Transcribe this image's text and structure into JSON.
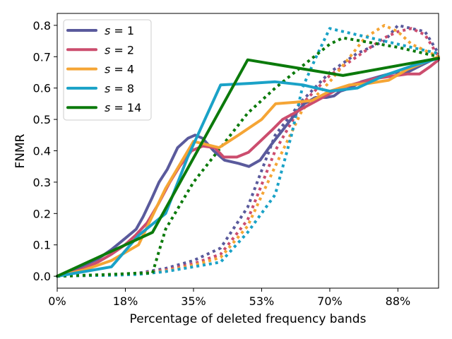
{
  "chart_data": {
    "type": "line",
    "title": "",
    "xlabel": "Percentage of deleted frequency bands",
    "ylabel": "FNMR",
    "xlim": [
      0,
      98.5
    ],
    "ylim": [
      -0.038,
      0.838
    ],
    "xticks": [
      0,
      17.6,
      35.2,
      52.8,
      70.4,
      88.0
    ],
    "xtick_labels": [
      "0%",
      "18%",
      "35%",
      "53%",
      "70%",
      "88%"
    ],
    "yticks": [
      0.0,
      0.1,
      0.2,
      0.3,
      0.4,
      0.5,
      0.6,
      0.7,
      0.8
    ],
    "ytick_labels": [
      "0.0",
      "0.1",
      "0.2",
      "0.3",
      "0.4",
      "0.5",
      "0.6",
      "0.7",
      "0.8"
    ],
    "grid": false,
    "legend_position": "top-left",
    "legend_prefix": "s",
    "legend_equals": "=",
    "note": "solid lines and dotted lines per setting; legend shows solid style",
    "series": [
      {
        "name": "1",
        "label": "s = 1",
        "color": "#5a5a9c",
        "style": "solid",
        "x": [
          0,
          3.5,
          7,
          10.5,
          14,
          17.5,
          20.4,
          22.2,
          24.5,
          26.3,
          28.4,
          31.1,
          33.8,
          35.6,
          37.5,
          40.4,
          43.2,
          46.8,
          49.5,
          52.4,
          55.3,
          58.5,
          61,
          63.8,
          66.7,
          69.5,
          71.5,
          73.1,
          75.7,
          78.5,
          81.3,
          84.2,
          87.2,
          89.6,
          92,
          95.2,
          98.5
        ],
        "y": [
          0,
          0.015,
          0.035,
          0.055,
          0.085,
          0.12,
          0.15,
          0.19,
          0.25,
          0.3,
          0.34,
          0.41,
          0.44,
          0.45,
          0.44,
          0.4,
          0.37,
          0.36,
          0.35,
          0.37,
          0.42,
          0.47,
          0.51,
          0.55,
          0.57,
          0.57,
          0.575,
          0.59,
          0.6,
          0.62,
          0.63,
          0.64,
          0.65,
          0.645,
          0.66,
          0.68,
          0.7
        ]
      },
      {
        "name": "2",
        "label": "s = 2",
        "color": "#cc4d6e",
        "style": "solid",
        "x": [
          0,
          3.5,
          7,
          10.5,
          14,
          17.5,
          20.2,
          23.2,
          26.1,
          29.1,
          31.6,
          34.7,
          37.6,
          40.7,
          43,
          46.4,
          49.4,
          52.4,
          55.4,
          58.2,
          61.2,
          64.1,
          67.1,
          70,
          73,
          75.9,
          78.9,
          81.8,
          84.8,
          87.7,
          90.6,
          93.6,
          96.5,
          98.5
        ],
        "y": [
          0,
          0.01,
          0.025,
          0.045,
          0.07,
          0.1,
          0.13,
          0.17,
          0.23,
          0.3,
          0.35,
          0.4,
          0.415,
          0.41,
          0.38,
          0.38,
          0.395,
          0.43,
          0.465,
          0.5,
          0.52,
          0.54,
          0.56,
          0.58,
          0.6,
          0.61,
          0.62,
          0.63,
          0.635,
          0.64,
          0.645,
          0.645,
          0.67,
          0.69
        ]
      },
      {
        "name": "4",
        "label": "s = 4",
        "color": "#f5a535",
        "style": "solid",
        "x": [
          0,
          7,
          14,
          21,
          28,
          35.2,
          41.8,
          46.8,
          52.8,
          56.4,
          61.5,
          65.8,
          70.4,
          75.5,
          80.5,
          85.6,
          90.5,
          98.5
        ],
        "y": [
          0,
          0.02,
          0.05,
          0.1,
          0.28,
          0.43,
          0.41,
          0.45,
          0.5,
          0.55,
          0.555,
          0.56,
          0.59,
          0.61,
          0.615,
          0.625,
          0.66,
          0.7
        ]
      },
      {
        "name": "8",
        "label": "s = 8",
        "color": "#1aa2c7",
        "style": "solid",
        "x": [
          0,
          7,
          14,
          21,
          28,
          33.7,
          42.2,
          50,
          56.3,
          63.4,
          70.4,
          77.5,
          84.5,
          91.5,
          98.5
        ],
        "y": [
          0,
          0.015,
          0.03,
          0.13,
          0.2,
          0.38,
          0.61,
          0.615,
          0.62,
          0.61,
          0.59,
          0.6,
          0.64,
          0.67,
          0.695
        ]
      },
      {
        "name": "14",
        "label": "s = 14",
        "color": "#0b7a0b",
        "style": "solid",
        "x": [
          0,
          24.6,
          49.2,
          73.8,
          98.5
        ],
        "y": [
          0,
          0.14,
          0.69,
          0.64,
          0.695
        ]
      },
      {
        "name": "1 dotted",
        "label": "",
        "color": "#5a5a9c",
        "style": "dotted",
        "x": [
          0,
          7,
          14,
          21,
          28,
          35.2,
          42.2,
          49.2,
          56.3,
          63.3,
          70.4,
          77.4,
          84.5,
          88.0,
          91.5,
          95,
          98.5
        ],
        "y": [
          0,
          0.002,
          0.004,
          0.01,
          0.025,
          0.05,
          0.09,
          0.22,
          0.45,
          0.56,
          0.65,
          0.71,
          0.75,
          0.8,
          0.79,
          0.78,
          0.71
        ]
      },
      {
        "name": "2 dotted",
        "label": "",
        "color": "#cc4d6e",
        "style": "dotted",
        "x": [
          0,
          7,
          14,
          21,
          28,
          35.2,
          42.2,
          49.2,
          56.3,
          63.3,
          70.4,
          77.4,
          84.5,
          88.0,
          91.5,
          95,
          98.5
        ],
        "y": [
          0,
          0.002,
          0.004,
          0.008,
          0.02,
          0.04,
          0.07,
          0.18,
          0.4,
          0.55,
          0.64,
          0.7,
          0.76,
          0.78,
          0.79,
          0.77,
          0.7
        ]
      },
      {
        "name": "4 dotted",
        "label": "",
        "color": "#f5a535",
        "style": "dotted",
        "x": [
          0,
          7,
          14,
          21,
          28,
          35.2,
          42.2,
          49.2,
          56.3,
          63.3,
          70.4,
          75.0,
          79.5,
          84.5,
          88.0,
          91.5,
          95,
          98.5
        ],
        "y": [
          0,
          0.002,
          0.004,
          0.007,
          0.017,
          0.035,
          0.06,
          0.16,
          0.35,
          0.53,
          0.62,
          0.69,
          0.76,
          0.8,
          0.78,
          0.74,
          0.72,
          0.7
        ]
      },
      {
        "name": "8 dotted",
        "label": "",
        "color": "#1aa2c7",
        "style": "dotted",
        "x": [
          0,
          7,
          14,
          21,
          28,
          35.2,
          42.2,
          49.2,
          56.3,
          60.5,
          63.3,
          66.9,
          70.4,
          77.4,
          84.5,
          91.5,
          98.5
        ],
        "y": [
          0,
          0.002,
          0.003,
          0.006,
          0.015,
          0.03,
          0.045,
          0.14,
          0.26,
          0.45,
          0.6,
          0.7,
          0.79,
          0.77,
          0.75,
          0.73,
          0.71
        ]
      },
      {
        "name": "14 dotted",
        "label": "",
        "color": "#0b7a0b",
        "style": "dotted",
        "x": [
          0,
          7,
          14,
          21,
          24.6,
          28,
          35.2,
          42.2,
          49.2,
          56.3,
          63.3,
          70.4,
          73.8,
          80.9,
          88.0,
          98.5
        ],
        "y": [
          0,
          0.003,
          0.006,
          0.01,
          0.01,
          0.15,
          0.3,
          0.41,
          0.52,
          0.6,
          0.67,
          0.74,
          0.76,
          0.745,
          0.73,
          0.7
        ]
      }
    ]
  }
}
